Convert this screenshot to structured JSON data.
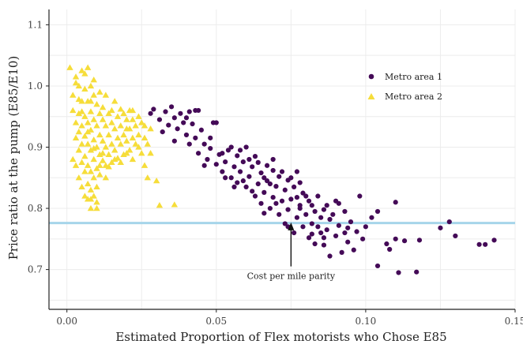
{
  "chart_data": {
    "type": "scatter",
    "title": "",
    "xlabel": "Estimated Proportion of Flex motorists who Chose E85",
    "ylabel": "Price ratio at the pump (E85/E10)",
    "xlim": [
      -0.006,
      0.15
    ],
    "ylim": [
      0.635,
      1.125
    ],
    "x_ticks": [
      0.0,
      0.05,
      0.1,
      0.15
    ],
    "x_tick_labels": [
      "0.00",
      "0.05",
      "0.10",
      "0.15"
    ],
    "y_ticks": [
      0.7,
      0.8,
      0.9,
      1.0,
      1.1
    ],
    "y_tick_labels": [
      "0.7",
      "0.8",
      "0.9",
      "1.0",
      "1.1"
    ],
    "grid": true,
    "legend_position": "top-right",
    "reference_line": {
      "y": 0.776,
      "color": "#a6d5ea"
    },
    "annotation": {
      "text": "Cost per mile parity",
      "x": 0.075,
      "y_text": 0.7,
      "y_arrow_tip": 0.777
    },
    "series": [
      {
        "name": "Metro area 1",
        "marker": "circle",
        "color": "#440a57",
        "points": [
          [
            0.028,
            0.955
          ],
          [
            0.029,
            0.962
          ],
          [
            0.031,
            0.945
          ],
          [
            0.032,
            0.925
          ],
          [
            0.033,
            0.958
          ],
          [
            0.034,
            0.936
          ],
          [
            0.035,
            0.966
          ],
          [
            0.036,
            0.948
          ],
          [
            0.037,
            0.93
          ],
          [
            0.038,
            0.955
          ],
          [
            0.039,
            0.94
          ],
          [
            0.04,
            0.92
          ],
          [
            0.041,
            0.958
          ],
          [
            0.041,
            0.905
          ],
          [
            0.042,
            0.938
          ],
          [
            0.043,
            0.96
          ],
          [
            0.043,
            0.915
          ],
          [
            0.044,
            0.89
          ],
          [
            0.045,
            0.928
          ],
          [
            0.046,
            0.905
          ],
          [
            0.047,
            0.88
          ],
          [
            0.048,
            0.898
          ],
          [
            0.049,
            0.94
          ],
          [
            0.05,
            0.872
          ],
          [
            0.051,
            0.888
          ],
          [
            0.052,
            0.86
          ],
          [
            0.053,
            0.876
          ],
          [
            0.054,
            0.895
          ],
          [
            0.055,
            0.85
          ],
          [
            0.056,
            0.868
          ],
          [
            0.057,
            0.886
          ],
          [
            0.057,
            0.842
          ],
          [
            0.058,
            0.86
          ],
          [
            0.059,
            0.876
          ],
          [
            0.06,
            0.835
          ],
          [
            0.06,
            0.9
          ],
          [
            0.061,
            0.852
          ],
          [
            0.062,
            0.868
          ],
          [
            0.063,
            0.82
          ],
          [
            0.063,
            0.885
          ],
          [
            0.064,
            0.84
          ],
          [
            0.065,
            0.858
          ],
          [
            0.065,
            0.808
          ],
          [
            0.066,
            0.826
          ],
          [
            0.067,
            0.87
          ],
          [
            0.067,
            0.845
          ],
          [
            0.068,
            0.8
          ],
          [
            0.069,
            0.818
          ],
          [
            0.069,
            0.862
          ],
          [
            0.07,
            0.836
          ],
          [
            0.071,
            0.79
          ],
          [
            0.071,
            0.852
          ],
          [
            0.072,
            0.812
          ],
          [
            0.073,
            0.83
          ],
          [
            0.073,
            0.775
          ],
          [
            0.074,
            0.846
          ],
          [
            0.074,
            0.798
          ],
          [
            0.075,
            0.815
          ],
          [
            0.076,
            0.76
          ],
          [
            0.076,
            0.835
          ],
          [
            0.077,
            0.785
          ],
          [
            0.077,
            0.86
          ],
          [
            0.078,
            0.805
          ],
          [
            0.079,
            0.77
          ],
          [
            0.079,
            0.825
          ],
          [
            0.08,
            0.79
          ],
          [
            0.081,
            0.752
          ],
          [
            0.081,
            0.812
          ],
          [
            0.082,
            0.775
          ],
          [
            0.083,
            0.795
          ],
          [
            0.083,
            0.742
          ],
          [
            0.084,
            0.82
          ],
          [
            0.085,
            0.76
          ],
          [
            0.085,
            0.785
          ],
          [
            0.086,
            0.74
          ],
          [
            0.087,
            0.805
          ],
          [
            0.087,
            0.765
          ],
          [
            0.088,
            0.722
          ],
          [
            0.089,
            0.79
          ],
          [
            0.09,
            0.755
          ],
          [
            0.09,
            0.812
          ],
          [
            0.091,
            0.772
          ],
          [
            0.092,
            0.728
          ],
          [
            0.093,
            0.795
          ],
          [
            0.093,
            0.76
          ],
          [
            0.094,
            0.745
          ],
          [
            0.095,
            0.778
          ],
          [
            0.096,
            0.732
          ],
          [
            0.097,
            0.762
          ],
          [
            0.098,
            0.82
          ],
          [
            0.099,
            0.75
          ],
          [
            0.1,
            0.77
          ],
          [
            0.102,
            0.785
          ],
          [
            0.104,
            0.706
          ],
          [
            0.104,
            0.795
          ],
          [
            0.107,
            0.742
          ],
          [
            0.108,
            0.733
          ],
          [
            0.11,
            0.81
          ],
          [
            0.11,
            0.75
          ],
          [
            0.111,
            0.695
          ],
          [
            0.113,
            0.747
          ],
          [
            0.117,
            0.696
          ],
          [
            0.118,
            0.748
          ],
          [
            0.125,
            0.768
          ],
          [
            0.128,
            0.778
          ],
          [
            0.13,
            0.755
          ],
          [
            0.138,
            0.741
          ],
          [
            0.14,
            0.741
          ],
          [
            0.143,
            0.748
          ],
          [
            0.036,
            0.91
          ],
          [
            0.04,
            0.948
          ],
          [
            0.044,
            0.96
          ],
          [
            0.046,
            0.87
          ],
          [
            0.048,
            0.915
          ],
          [
            0.05,
            0.94
          ],
          [
            0.052,
            0.89
          ],
          [
            0.053,
            0.85
          ],
          [
            0.055,
            0.9
          ],
          [
            0.056,
            0.835
          ],
          [
            0.058,
            0.895
          ],
          [
            0.059,
            0.845
          ],
          [
            0.061,
            0.88
          ],
          [
            0.062,
            0.828
          ],
          [
            0.064,
            0.875
          ],
          [
            0.066,
            0.85
          ],
          [
            0.068,
            0.84
          ],
          [
            0.069,
            0.88
          ],
          [
            0.07,
            0.808
          ],
          [
            0.072,
            0.86
          ],
          [
            0.075,
            0.85
          ],
          [
            0.077,
            0.818
          ],
          [
            0.078,
            0.842
          ],
          [
            0.08,
            0.82
          ],
          [
            0.082,
            0.805
          ],
          [
            0.084,
            0.77
          ],
          [
            0.086,
            0.798
          ],
          [
            0.088,
            0.782
          ],
          [
            0.091,
            0.808
          ],
          [
            0.094,
            0.768
          ],
          [
            0.066,
            0.792
          ],
          [
            0.074,
            0.77
          ],
          [
            0.078,
            0.8
          ],
          [
            0.082,
            0.758
          ],
          [
            0.086,
            0.752
          ]
        ]
      },
      {
        "name": "Metro area 2",
        "marker": "triangle",
        "color": "#f6dd3a",
        "points": [
          [
            0.001,
            1.03
          ],
          [
            0.002,
            0.985
          ],
          [
            0.002,
            0.96
          ],
          [
            0.002,
            0.88
          ],
          [
            0.003,
            1.015
          ],
          [
            0.003,
            0.94
          ],
          [
            0.003,
            0.915
          ],
          [
            0.003,
            0.87
          ],
          [
            0.004,
            1.0
          ],
          [
            0.004,
            0.955
          ],
          [
            0.004,
            0.925
          ],
          [
            0.004,
            0.895
          ],
          [
            0.004,
            0.85
          ],
          [
            0.005,
            1.025
          ],
          [
            0.005,
            0.975
          ],
          [
            0.005,
            0.935
          ],
          [
            0.005,
            0.905
          ],
          [
            0.005,
            0.875
          ],
          [
            0.005,
            0.835
          ],
          [
            0.006,
            0.995
          ],
          [
            0.006,
            0.95
          ],
          [
            0.006,
            0.918
          ],
          [
            0.006,
            0.885
          ],
          [
            0.006,
            0.86
          ],
          [
            0.007,
            1.03
          ],
          [
            0.007,
            0.975
          ],
          [
            0.007,
            0.94
          ],
          [
            0.007,
            0.905
          ],
          [
            0.007,
            0.87
          ],
          [
            0.007,
            0.84
          ],
          [
            0.007,
            0.815
          ],
          [
            0.008,
            1.0
          ],
          [
            0.008,
            0.958
          ],
          [
            0.008,
            0.928
          ],
          [
            0.008,
            0.895
          ],
          [
            0.008,
            0.86
          ],
          [
            0.008,
            0.83
          ],
          [
            0.008,
            0.8
          ],
          [
            0.009,
            0.985
          ],
          [
            0.009,
            0.945
          ],
          [
            0.009,
            0.912
          ],
          [
            0.009,
            0.88
          ],
          [
            0.009,
            0.85
          ],
          [
            0.009,
            0.82
          ],
          [
            0.01,
            0.97
          ],
          [
            0.01,
            0.935
          ],
          [
            0.01,
            0.9
          ],
          [
            0.01,
            0.865
          ],
          [
            0.01,
            0.835
          ],
          [
            0.01,
            0.81
          ],
          [
            0.011,
            0.955
          ],
          [
            0.011,
            0.92
          ],
          [
            0.011,
            0.888
          ],
          [
            0.011,
            0.855
          ],
          [
            0.012,
            0.945
          ],
          [
            0.012,
            0.91
          ],
          [
            0.012,
            0.878
          ],
          [
            0.013,
            0.935
          ],
          [
            0.013,
            0.9
          ],
          [
            0.013,
            0.87
          ],
          [
            0.014,
            0.955
          ],
          [
            0.014,
            0.92
          ],
          [
            0.014,
            0.888
          ],
          [
            0.015,
            0.94
          ],
          [
            0.015,
            0.905
          ],
          [
            0.015,
            0.875
          ],
          [
            0.016,
            0.93
          ],
          [
            0.016,
            0.895
          ],
          [
            0.017,
            0.95
          ],
          [
            0.017,
            0.915
          ],
          [
            0.017,
            0.882
          ],
          [
            0.018,
            0.935
          ],
          [
            0.018,
            0.905
          ],
          [
            0.019,
            0.955
          ],
          [
            0.019,
            0.92
          ],
          [
            0.019,
            0.888
          ],
          [
            0.02,
            0.945
          ],
          [
            0.02,
            0.91
          ],
          [
            0.021,
            0.96
          ],
          [
            0.021,
            0.93
          ],
          [
            0.021,
            0.895
          ],
          [
            0.022,
            0.945
          ],
          [
            0.022,
            0.915
          ],
          [
            0.023,
            0.935
          ],
          [
            0.023,
            0.905
          ],
          [
            0.024,
            0.95
          ],
          [
            0.024,
            0.92
          ],
          [
            0.025,
            0.94
          ],
          [
            0.025,
            0.89
          ],
          [
            0.026,
            0.915
          ],
          [
            0.026,
            0.87
          ],
          [
            0.027,
            0.905
          ],
          [
            0.027,
            0.85
          ],
          [
            0.028,
            0.89
          ],
          [
            0.03,
            0.845
          ],
          [
            0.031,
            0.805
          ],
          [
            0.036,
            0.806
          ],
          [
            0.003,
            1.005
          ],
          [
            0.004,
            0.978
          ],
          [
            0.006,
            1.02
          ],
          [
            0.008,
            0.975
          ],
          [
            0.009,
            1.01
          ],
          [
            0.011,
            0.99
          ],
          [
            0.012,
            0.965
          ],
          [
            0.013,
            0.985
          ],
          [
            0.015,
            0.96
          ],
          [
            0.016,
            0.975
          ],
          [
            0.018,
            0.962
          ],
          [
            0.02,
            0.93
          ],
          [
            0.022,
            0.96
          ],
          [
            0.024,
            0.9
          ],
          [
            0.026,
            0.935
          ],
          [
            0.005,
            0.958
          ],
          [
            0.007,
            0.925
          ],
          [
            0.009,
            0.898
          ],
          [
            0.011,
            0.87
          ],
          [
            0.013,
            0.85
          ],
          [
            0.006,
            0.82
          ],
          [
            0.01,
            0.8
          ],
          [
            0.008,
            0.815
          ],
          [
            0.012,
            0.89
          ],
          [
            0.014,
            0.868
          ],
          [
            0.016,
            0.88
          ],
          [
            0.018,
            0.875
          ],
          [
            0.02,
            0.89
          ],
          [
            0.022,
            0.88
          ],
          [
            0.028,
            0.93
          ]
        ]
      }
    ]
  }
}
